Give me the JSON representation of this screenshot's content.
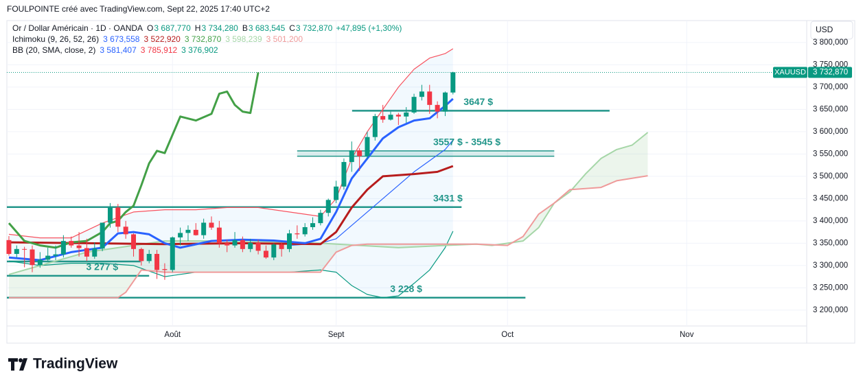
{
  "header": {
    "title": "FOULPOINTE créé avec TradingView.com, Sept 22, 2025 17:40 UTC+2",
    "currency": "USD",
    "symbol": "XAUUSD",
    "last_price": "3 732,870",
    "brand": "TradingView"
  },
  "legend": {
    "main": {
      "name": "Or / Dollar Américain · 1D · OANDA",
      "items": [
        [
          "O",
          "3 687,770"
        ],
        [
          "H",
          "3 734,280"
        ],
        [
          "B",
          "3 683,545"
        ],
        [
          "C",
          "3 732,870"
        ]
      ],
      "change": "+47,895 (+1,30%)"
    },
    "ichimoku": {
      "name": "Ichimoku (9, 26, 52, 26)",
      "values": [
        "3 673,558",
        "3 522,920",
        "3 732,870",
        "3 598,239",
        "3 501,200"
      ],
      "colors": [
        "#2962ff",
        "#b71c1c",
        "#43a047",
        "#a5d6a7",
        "#ef9a9a"
      ]
    },
    "bb": {
      "name": "BB (20, SMA, close, 2)",
      "values": [
        "3 581,407",
        "3 785,912",
        "3 376,902"
      ],
      "colors": [
        "#2962ff",
        "#f23645",
        "#089981"
      ]
    }
  },
  "chart_data": {
    "type": "candlestick",
    "xlim": [
      -0.26,
      102.4
    ],
    "ylim": [
      3126,
      3849
    ],
    "xticks": [
      {
        "value": 21,
        "label": "Août"
      },
      {
        "value": 42,
        "label": "Sept"
      },
      {
        "value": 64,
        "label": "Oct"
      },
      {
        "value": 87,
        "label": "Nov"
      }
    ],
    "yticks": [
      {
        "value": 3200,
        "label": "3 200,000"
      },
      {
        "value": 3250,
        "label": "3 250,000"
      },
      {
        "value": 3300,
        "label": "3 300,000"
      },
      {
        "value": 3350,
        "label": "3 350,000"
      },
      {
        "value": 3400,
        "label": "3 400,000"
      },
      {
        "value": 3450,
        "label": "3 450,000"
      },
      {
        "value": 3500,
        "label": "3 500,000"
      },
      {
        "value": 3550,
        "label": "3 550,000"
      },
      {
        "value": 3600,
        "label": "3 600,000"
      },
      {
        "value": 3650,
        "label": "3 650,000"
      },
      {
        "value": 3700,
        "label": "3 700,000"
      },
      {
        "value": 3750,
        "label": "3 750,000"
      },
      {
        "value": 3800,
        "label": "3 800,000"
      }
    ],
    "grid": true,
    "up_color": "#089981",
    "down_color": "#f23645",
    "open": [
      3357,
      3326,
      3337,
      3336,
      3301,
      3313,
      3322,
      3325,
      3355,
      3345,
      3339,
      3320,
      3338,
      3396,
      3430,
      3387,
      3370,
      3337,
      3310,
      3326,
      3292,
      3290,
      3363,
      3373,
      3380,
      3368,
      3396,
      3385,
      3350,
      3345,
      3357,
      3337,
      3351,
      3333,
      3318,
      3347,
      3337,
      3372,
      3370,
      3386,
      3395,
      3418,
      3447,
      3477,
      3532,
      3558,
      3545,
      3588,
      3635,
      3627,
      3638,
      3634,
      3643,
      3678,
      3690,
      3660,
      3645,
      3687.77
    ],
    "high": [
      3366,
      3345,
      3342,
      3345,
      3330,
      3340,
      3345,
      3368,
      3365,
      3375,
      3360,
      3352,
      3395,
      3440,
      3438,
      3400,
      3372,
      3340,
      3335,
      3335,
      3305,
      3365,
      3385,
      3390,
      3395,
      3405,
      3410,
      3400,
      3358,
      3375,
      3365,
      3360,
      3358,
      3345,
      3350,
      3352,
      3380,
      3390,
      3395,
      3408,
      3425,
      3450,
      3490,
      3540,
      3578,
      3563,
      3600,
      3640,
      3660,
      3645,
      3642,
      3655,
      3685,
      3705,
      3705,
      3668,
      3690,
      3734.28
    ],
    "low": [
      3322,
      3318,
      3296,
      3285,
      3295,
      3310,
      3312,
      3318,
      3340,
      3320,
      3310,
      3315,
      3332,
      3385,
      3375,
      3360,
      3320,
      3300,
      3305,
      3270,
      3268,
      3285,
      3345,
      3355,
      3367,
      3360,
      3380,
      3340,
      3330,
      3340,
      3330,
      3330,
      3325,
      3315,
      3312,
      3320,
      3330,
      3360,
      3365,
      3380,
      3390,
      3410,
      3440,
      3470,
      3510,
      3512,
      3538,
      3580,
      3620,
      3625,
      3615,
      3620,
      3640,
      3670,
      3640,
      3630,
      3635,
      3683.545
    ],
    "close": [
      3326,
      3337,
      3336,
      3301,
      3313,
      3322,
      3325,
      3355,
      3345,
      3339,
      3320,
      3338,
      3396,
      3430,
      3387,
      3370,
      3337,
      3310,
      3326,
      3290,
      3290,
      3363,
      3373,
      3380,
      3368,
      3396,
      3385,
      3350,
      3345,
      3357,
      3337,
      3351,
      3333,
      3318,
      3347,
      3337,
      3372,
      3370,
      3386,
      3395,
      3418,
      3447,
      3477,
      3532,
      3558,
      3545,
      3588,
      3635,
      3627,
      3638,
      3634,
      3643,
      3678,
      3690,
      3660,
      3645,
      3687.77,
      3732.87
    ],
    "lines": [
      {
        "color": "#f7525f",
        "width": 1.2,
        "x": [
          0,
          4,
          8,
          12,
          16,
          20,
          24,
          28,
          32,
          36,
          40,
          42,
          44,
          46,
          48,
          50,
          52,
          54,
          56,
          57
        ],
        "values": [
          3370,
          3362,
          3362,
          3395,
          3420,
          3425,
          3425,
          3430,
          3430,
          3420,
          3410,
          3450,
          3540,
          3600,
          3650,
          3700,
          3740,
          3765,
          3775,
          3785.912
        ]
      },
      {
        "color": "#089981",
        "width": 1.2,
        "x": [
          0,
          4,
          8,
          12,
          16,
          20,
          24,
          28,
          32,
          36,
          40,
          42,
          44,
          46,
          48,
          50,
          52,
          54,
          56,
          57
        ],
        "values": [
          3310,
          3300,
          3305,
          3305,
          3300,
          3275,
          3285,
          3285,
          3285,
          3285,
          3290,
          3285,
          3255,
          3235,
          3228,
          3232,
          3260,
          3290,
          3340,
          3376.902
        ]
      },
      {
        "color": "#2962ff",
        "width": 1.2,
        "x": [
          36,
          40,
          42,
          44,
          46,
          48,
          50,
          52,
          54,
          56,
          57
        ],
        "values": [
          3345,
          3350,
          3360,
          3390,
          3420,
          3450,
          3480,
          3510,
          3535,
          3560,
          3581.407
        ]
      },
      {
        "color": "#a5d6a7",
        "width": 2,
        "x": [
          0,
          10,
          20,
          30,
          40,
          45,
          50,
          56,
          60,
          62,
          64,
          66,
          68,
          70,
          72,
          74,
          76,
          78,
          80,
          82
        ],
        "values": [
          3280,
          3330,
          3355,
          3355,
          3350,
          3345,
          3340,
          3345,
          3348,
          3345,
          3350,
          3355,
          3385,
          3440,
          3465,
          3505,
          3540,
          3560,
          3570,
          3598.239
        ]
      },
      {
        "color": "#ef9a9a",
        "width": 2,
        "x": [
          0,
          14,
          15,
          17,
          20,
          24,
          40,
          42,
          44,
          46,
          48,
          60,
          64,
          66,
          68,
          70,
          72,
          76,
          78,
          82
        ],
        "values": [
          3228,
          3228,
          3240,
          3290,
          3285,
          3285,
          3285,
          3330,
          3345,
          3348,
          3348,
          3348,
          3345,
          3365,
          3415,
          3440,
          3470,
          3475,
          3490,
          3501.2
        ]
      },
      {
        "color": "#b71c1c",
        "width": 3,
        "x": [
          0,
          10,
          20,
          30,
          40,
          42,
          44,
          46,
          48,
          52,
          55,
          57
        ],
        "values": [
          3352,
          3350,
          3348,
          3350,
          3348,
          3375,
          3430,
          3470,
          3500,
          3505,
          3510,
          3522.92
        ]
      },
      {
        "color": "#2962ff",
        "width": 3,
        "x": [
          0,
          4,
          8,
          12,
          14,
          16,
          18,
          20,
          22,
          26,
          30,
          34,
          38,
          40,
          42,
          44,
          46,
          48,
          50,
          52,
          54,
          56,
          57
        ],
        "values": [
          3318,
          3312,
          3330,
          3340,
          3372,
          3375,
          3370,
          3350,
          3340,
          3355,
          3358,
          3356,
          3350,
          3360,
          3420,
          3495,
          3540,
          3585,
          3610,
          3625,
          3630,
          3658,
          3673.558
        ]
      },
      {
        "color": "#43a047",
        "width": 3,
        "x": [
          0,
          2,
          4,
          6,
          8,
          10,
          12,
          13,
          14,
          15,
          16,
          17,
          18,
          19,
          20,
          22,
          24,
          26,
          27,
          28,
          29,
          30,
          31,
          32
        ],
        "values": [
          3395,
          3355,
          3345,
          3340,
          3352,
          3355,
          3375,
          3395,
          3400,
          3420,
          3434,
          3480,
          3529,
          3557,
          3552,
          3634,
          3625,
          3640,
          3685,
          3690,
          3660,
          3645,
          3642,
          3732.87
        ]
      }
    ],
    "levels": [
      {
        "label": "3647 $",
        "values": [
          3647
        ],
        "x": [
          44.05,
          77.1
        ]
      },
      {
        "label": "3557 $ - 3545 $",
        "values": [
          3557,
          3545
        ],
        "x": [
          37,
          70
        ]
      },
      {
        "label": "3431 $",
        "values": [
          3431
        ],
        "x": [
          -0.26,
          58.1
        ]
      },
      {
        "values": [
          3309
        ],
        "x": [
          -0.26,
          16.9
        ]
      },
      {
        "label": "3 277 $",
        "values": [
          3277
        ],
        "x": [
          -0.26,
          18
        ]
      },
      {
        "label": "3 228 $",
        "values": [
          3228
        ],
        "x": [
          -0.26,
          66.3
        ]
      }
    ],
    "last": 3732.87
  }
}
